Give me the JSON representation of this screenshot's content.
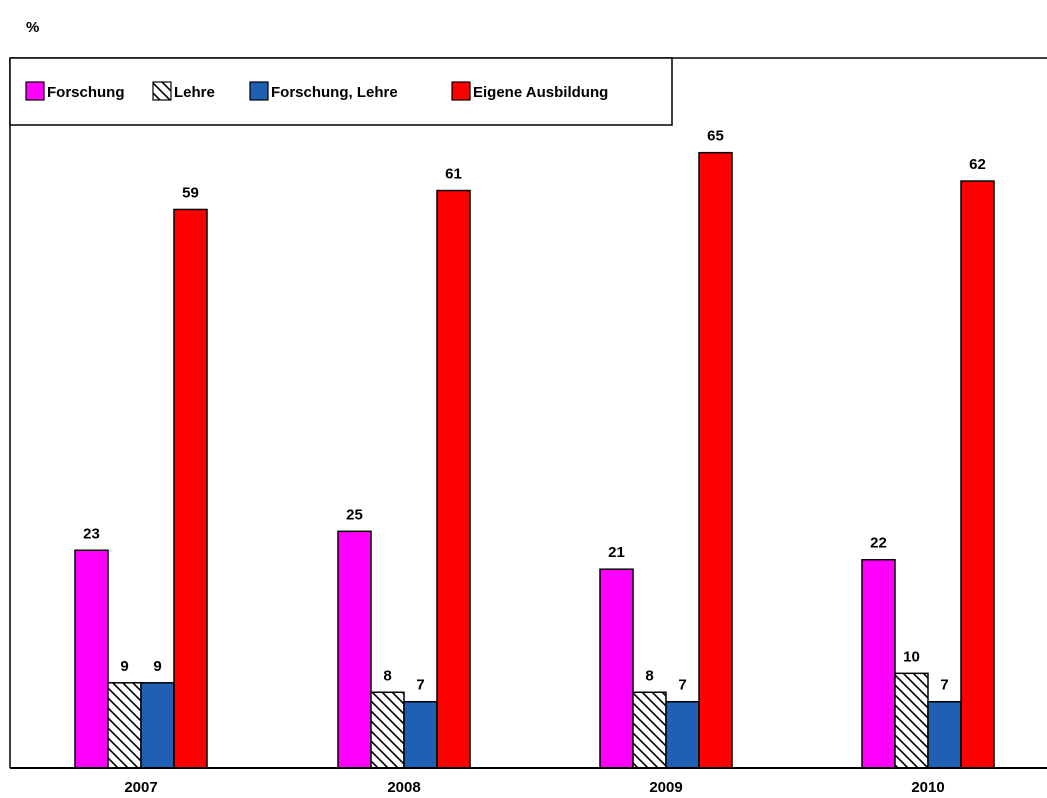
{
  "chart_data": {
    "type": "bar",
    "title": "",
    "xlabel": "",
    "ylabel": "%",
    "ylim": [
      0,
      75
    ],
    "grid": false,
    "legend_position": "top-left",
    "categories": [
      "2007",
      "2008",
      "2009",
      "2010"
    ],
    "series": [
      {
        "name": "Forschung",
        "values": [
          23,
          25,
          21,
          22
        ],
        "color": "#ff00ff",
        "pattern": "solid"
      },
      {
        "name": "Lehre",
        "values": [
          9,
          8,
          8,
          10
        ],
        "color": "#ffffff",
        "pattern": "diagonal-hatch"
      },
      {
        "name": "Forschung, Lehre",
        "values": [
          9,
          7,
          7,
          7
        ],
        "color": "#1f5fb4",
        "pattern": "solid"
      },
      {
        "name": "Eigene Ausbildung",
        "values": [
          59,
          61,
          65,
          62
        ],
        "color": "#ff0000",
        "pattern": "solid"
      }
    ]
  }
}
